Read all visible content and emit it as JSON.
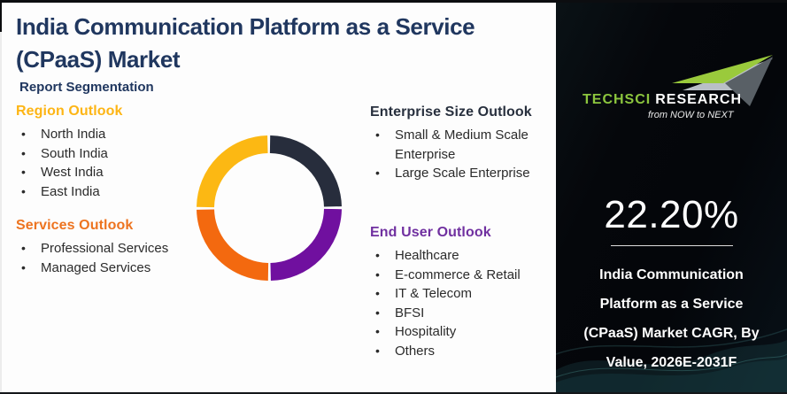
{
  "page": {
    "title_lines": [
      "India Communication Platform as a Service",
      "(CPaaS) Market"
    ],
    "subtitle": "Report Segmentation"
  },
  "sections": {
    "region": {
      "heading": "Region Outlook",
      "color": "#FDB515",
      "items": [
        "North India",
        "South India",
        "West India",
        "East India"
      ]
    },
    "services": {
      "heading": "Services Outlook",
      "color": "#ED7420",
      "items": [
        "Professional Services",
        "Managed Services"
      ]
    },
    "enterprise": {
      "heading": "Enterprise Size Outlook",
      "color": "#28303E",
      "items": [
        "Small & Medium Scale Enterprise",
        "Large Scale Enterprise"
      ]
    },
    "end_user": {
      "heading": "End User Outlook",
      "color": "#7030A0",
      "items": [
        "Healthcare",
        "E-commerce & Retail",
        "IT & Telecom",
        "BFSI",
        "Hospitality",
        "Others"
      ]
    }
  },
  "chart_data": {
    "type": "pie",
    "variant": "donut",
    "title": "",
    "legend": "none",
    "direction": "clockwise",
    "start_angle_deg": 0,
    "inner_radius_ratio": 0.76,
    "segments": [
      {
        "label": "top-right-dark-navy",
        "value": 25,
        "color": "#272D3C"
      },
      {
        "label": "bottom-right-purple",
        "value": 25,
        "color": "#70109F"
      },
      {
        "label": "bottom-left-orange",
        "value": 25,
        "color": "#F3690F"
      },
      {
        "label": "top-left-amber",
        "value": 25,
        "color": "#FCB813"
      }
    ]
  },
  "sidebar": {
    "logo": {
      "name_primary": "TechSci",
      "name_secondary": "Research",
      "tagline": "from NOW to NEXT",
      "accent_green": "#8CC63E"
    },
    "cagr": "22.20%",
    "caption_lines": [
      "India Communication",
      "Platform as a Service",
      "(CPaaS) Market CAGR, By",
      "Value, 2026E-2031F"
    ]
  }
}
